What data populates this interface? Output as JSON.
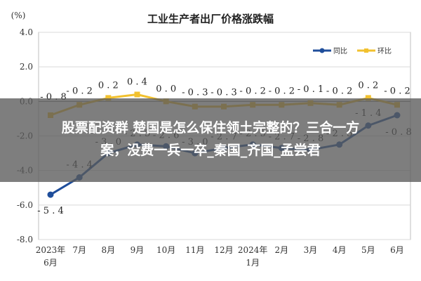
{
  "chart_data": {
    "type": "line",
    "title": "工业生产者出厂价格涨跌幅",
    "y_unit_label": "(%)",
    "ylim": [
      -8.0,
      4.0
    ],
    "yticks": [
      "4.0",
      "2.0",
      "0.0",
      "-2.0",
      "-4.0",
      "-6.0",
      "-8.0"
    ],
    "categories": [
      [
        "2023年",
        "6月"
      ],
      [
        "7月"
      ],
      [
        "8月"
      ],
      [
        "9月"
      ],
      [
        "10月"
      ],
      [
        "11月"
      ],
      [
        "12月"
      ],
      [
        "2024年",
        "1月"
      ],
      [
        "2月"
      ],
      [
        "3月"
      ],
      [
        "4月"
      ],
      [
        "5月"
      ],
      [
        "6月"
      ]
    ],
    "legend_position": "top-right",
    "series": [
      {
        "name": "同比",
        "color": "#1f4e9b",
        "values": [
          -5.4,
          -4.4,
          -3.0,
          -2.5,
          -2.6,
          -3.0,
          -2.7,
          -2.5,
          -2.7,
          -2.8,
          -2.5,
          -1.4,
          -0.8
        ],
        "labels": [
          "-5.4",
          "-4.4",
          "-3.0",
          "-2.5",
          "-2.6",
          "-3.0",
          "-2.7",
          "-2.5",
          "-2.7",
          "-2.8",
          "-2.5",
          "-1.4",
          "-0.8"
        ]
      },
      {
        "name": "环比",
        "color": "#f2c12e",
        "values": [
          -0.8,
          -0.2,
          0.2,
          0.4,
          0.0,
          -0.3,
          -0.3,
          -0.2,
          -0.2,
          -0.1,
          -0.2,
          0.2,
          -0.2
        ],
        "labels": [
          "-0.8",
          "-0.2",
          "0.2",
          "0.4",
          "0.0",
          "-0.3",
          "-0.3",
          "-0.2",
          "-0.2",
          "-0.1",
          "-0.2",
          "0.2",
          "-0.2"
        ]
      }
    ]
  },
  "overlay": {
    "line1": "股票配资群 楚国是怎么保住领土完整的？三合一方",
    "line2": "案，没费一兵一卒_秦国_齐国_孟尝君"
  }
}
